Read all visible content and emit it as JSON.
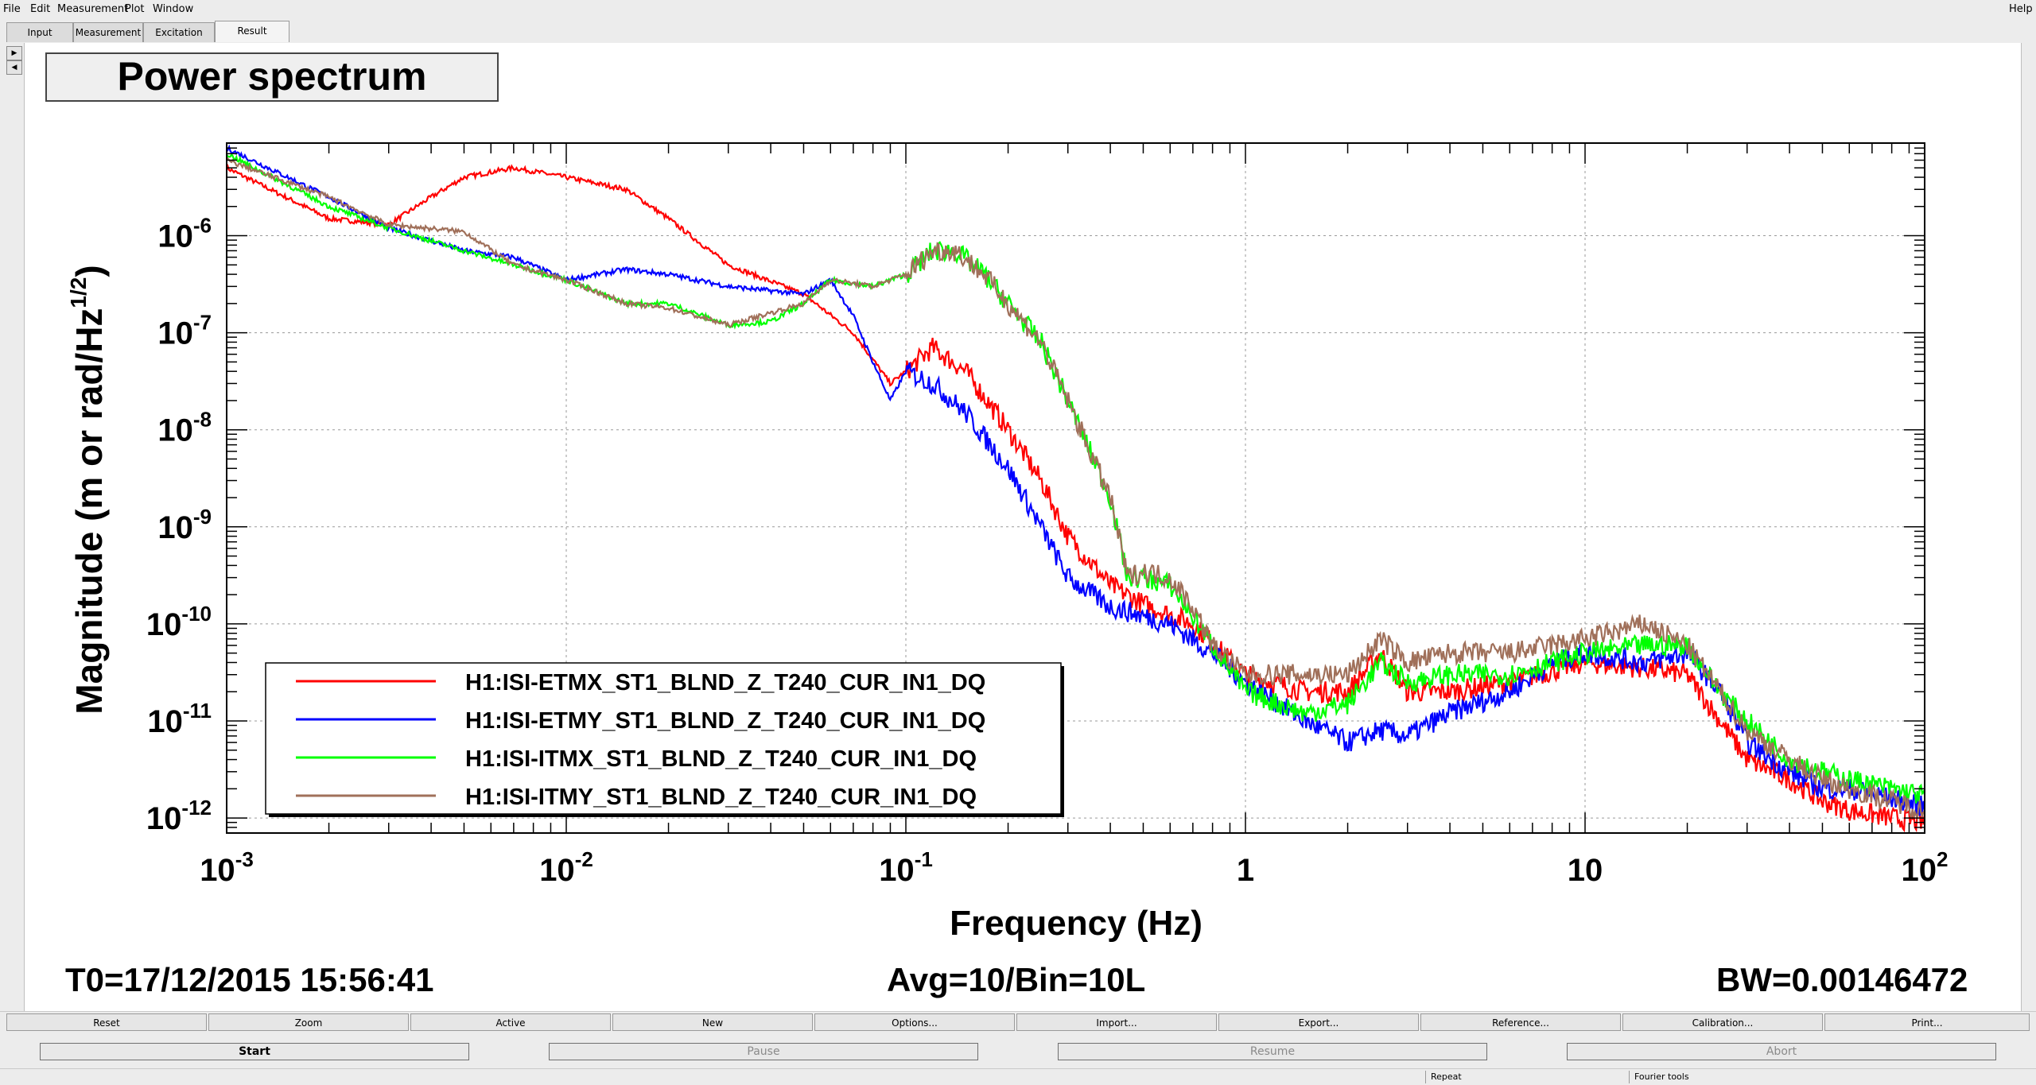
{
  "menu": {
    "file": "File",
    "edit": "Edit",
    "measurement": "Measurement",
    "plot": "Plot",
    "window": "Window",
    "help": "Help"
  },
  "tabs": [
    "Input",
    "Measurement",
    "Excitation",
    "Result"
  ],
  "plot": {
    "title": "Power spectrum",
    "footer_left": "T0=17/12/2015 15:56:41",
    "footer_center": "Avg=10/Bin=10L",
    "footer_right": "BW=0.00146472"
  },
  "chart_data": {
    "type": "line",
    "title": "Power spectrum",
    "xlabel": "Frequency (Hz)",
    "ylabel": "Magnitude (m or rad/Hz",
    "ylabel_sup": "1/2",
    "ylabel_close": ")",
    "xscale": "log",
    "yscale": "log",
    "xlim": [
      0.001,
      100
    ],
    "ylim": [
      7e-13,
      9e-06
    ],
    "grid": true,
    "legend_position": "bottom-left",
    "x_ticks": [
      {
        "value": 0.001,
        "base": "10",
        "exp": "-3"
      },
      {
        "value": 0.01,
        "base": "10",
        "exp": "-2"
      },
      {
        "value": 0.1,
        "base": "10",
        "exp": "-1"
      },
      {
        "value": 1,
        "base": "1",
        "exp": ""
      },
      {
        "value": 10,
        "base": "10",
        "exp": ""
      },
      {
        "value": 100,
        "base": "10",
        "exp": "2"
      }
    ],
    "y_ticks": [
      {
        "value": 1e-12,
        "base": "10",
        "exp": "-12"
      },
      {
        "value": 1e-11,
        "base": "10",
        "exp": "-11"
      },
      {
        "value": 1e-10,
        "base": "10",
        "exp": "-10"
      },
      {
        "value": 1e-09,
        "base": "10",
        "exp": "-9"
      },
      {
        "value": 1e-08,
        "base": "10",
        "exp": "-8"
      },
      {
        "value": 1e-07,
        "base": "10",
        "exp": "-7"
      },
      {
        "value": 1e-06,
        "base": "10",
        "exp": "-6"
      }
    ],
    "series": [
      {
        "name": "H1:ISI-ETMX_ST1_BLND_Z_T240_CUR_IN1_DQ",
        "color": "#ff0000",
        "points": [
          [
            0.001,
            5e-06
          ],
          [
            0.002,
            1.5e-06
          ],
          [
            0.003,
            1.3e-06
          ],
          [
            0.004,
            2.5e-06
          ],
          [
            0.005,
            4e-06
          ],
          [
            0.007,
            5e-06
          ],
          [
            0.01,
            4e-06
          ],
          [
            0.015,
            3e-06
          ],
          [
            0.02,
            1.5e-06
          ],
          [
            0.03,
            5e-07
          ],
          [
            0.05,
            2.5e-07
          ],
          [
            0.07,
            1e-07
          ],
          [
            0.09,
            3e-08
          ],
          [
            0.1,
            4e-08
          ],
          [
            0.12,
            7e-08
          ],
          [
            0.15,
            4e-08
          ],
          [
            0.2,
            1e-08
          ],
          [
            0.25,
            3e-09
          ],
          [
            0.3,
            8e-10
          ],
          [
            0.4,
            2.5e-10
          ],
          [
            0.5,
            1.6e-10
          ],
          [
            0.7,
            1e-10
          ],
          [
            1,
            3e-11
          ],
          [
            1.5,
            2e-11
          ],
          [
            2,
            2e-11
          ],
          [
            2.5,
            5e-11
          ],
          [
            3,
            2e-11
          ],
          [
            4,
            2e-11
          ],
          [
            6,
            2.5e-11
          ],
          [
            10,
            4e-11
          ],
          [
            15,
            3.5e-11
          ],
          [
            20,
            3e-11
          ],
          [
            25,
            1e-11
          ],
          [
            30,
            4e-12
          ],
          [
            40,
            2.5e-12
          ],
          [
            50,
            1.5e-12
          ],
          [
            60,
            1.2e-12
          ],
          [
            80,
            1e-12
          ],
          [
            100,
            9e-13
          ]
        ]
      },
      {
        "name": "H1:ISI-ETMY_ST1_BLND_Z_T240_CUR_IN1_DQ",
        "color": "#0000ff",
        "points": [
          [
            0.001,
            8e-06
          ],
          [
            0.002,
            2.5e-06
          ],
          [
            0.003,
            1.2e-06
          ],
          [
            0.005,
            7e-07
          ],
          [
            0.007,
            6e-07
          ],
          [
            0.01,
            3.5e-07
          ],
          [
            0.015,
            4.5e-07
          ],
          [
            0.02,
            4e-07
          ],
          [
            0.03,
            3e-07
          ],
          [
            0.05,
            2.5e-07
          ],
          [
            0.06,
            3.5e-07
          ],
          [
            0.07,
            1.5e-07
          ],
          [
            0.08,
            5e-08
          ],
          [
            0.09,
            2e-08
          ],
          [
            0.1,
            4e-08
          ],
          [
            0.12,
            3e-08
          ],
          [
            0.15,
            1.5e-08
          ],
          [
            0.2,
            4e-09
          ],
          [
            0.25,
            1e-09
          ],
          [
            0.3,
            3e-10
          ],
          [
            0.4,
            1.5e-10
          ],
          [
            0.6,
            1e-10
          ],
          [
            0.8,
            5e-11
          ],
          [
            1,
            2.5e-11
          ],
          [
            1.5,
            1e-11
          ],
          [
            2,
            6e-12
          ],
          [
            2.5,
            8e-12
          ],
          [
            3,
            7e-12
          ],
          [
            4,
            1.2e-11
          ],
          [
            6,
            2e-11
          ],
          [
            8,
            4e-11
          ],
          [
            10,
            5e-11
          ],
          [
            15,
            4e-11
          ],
          [
            20,
            5e-11
          ],
          [
            25,
            2e-11
          ],
          [
            30,
            6e-12
          ],
          [
            40,
            3e-12
          ],
          [
            50,
            2e-12
          ],
          [
            60,
            2e-12
          ],
          [
            80,
            1.6e-12
          ],
          [
            100,
            1.3e-12
          ]
        ]
      },
      {
        "name": "H1:ISI-ITMX_ST1_BLND_Z_T240_CUR_IN1_DQ",
        "color": "#00ff00",
        "points": [
          [
            0.001,
            7e-06
          ],
          [
            0.002,
            2e-06
          ],
          [
            0.003,
            1.2e-06
          ],
          [
            0.005,
            7e-07
          ],
          [
            0.007,
            5e-07
          ],
          [
            0.01,
            3.5e-07
          ],
          [
            0.015,
            2e-07
          ],
          [
            0.02,
            2e-07
          ],
          [
            0.03,
            1.2e-07
          ],
          [
            0.04,
            1.3e-07
          ],
          [
            0.05,
            2e-07
          ],
          [
            0.06,
            3.5e-07
          ],
          [
            0.08,
            3e-07
          ],
          [
            0.1,
            4e-07
          ],
          [
            0.12,
            7e-07
          ],
          [
            0.14,
            7e-07
          ],
          [
            0.17,
            4e-07
          ],
          [
            0.2,
            2e-07
          ],
          [
            0.25,
            8e-08
          ],
          [
            0.3,
            2e-08
          ],
          [
            0.4,
            2e-09
          ],
          [
            0.45,
            3e-10
          ],
          [
            0.5,
            3e-10
          ],
          [
            0.6,
            2.5e-10
          ],
          [
            0.7,
            1.2e-10
          ],
          [
            0.8,
            6e-11
          ],
          [
            1,
            2e-11
          ],
          [
            1.5,
            1.2e-11
          ],
          [
            2,
            1.5e-11
          ],
          [
            2.5,
            4e-11
          ],
          [
            3,
            2.5e-11
          ],
          [
            4,
            3e-11
          ],
          [
            6,
            3e-11
          ],
          [
            10,
            5e-11
          ],
          [
            15,
            6e-11
          ],
          [
            20,
            6e-11
          ],
          [
            25,
            2e-11
          ],
          [
            30,
            1e-11
          ],
          [
            40,
            4e-12
          ],
          [
            50,
            3e-12
          ],
          [
            60,
            2.5e-12
          ],
          [
            80,
            2e-12
          ],
          [
            100,
            1.7e-12
          ]
        ]
      },
      {
        "name": "H1:ISI-ITMY_ST1_BLND_Z_T240_CUR_IN1_DQ",
        "color": "#a0705a",
        "points": [
          [
            0.001,
            6e-06
          ],
          [
            0.002,
            2.5e-06
          ],
          [
            0.003,
            1.3e-06
          ],
          [
            0.005,
            1.1e-06
          ],
          [
            0.007,
            5e-07
          ],
          [
            0.01,
            3.5e-07
          ],
          [
            0.015,
            2e-07
          ],
          [
            0.02,
            1.8e-07
          ],
          [
            0.03,
            1.2e-07
          ],
          [
            0.05,
            2e-07
          ],
          [
            0.06,
            3.5e-07
          ],
          [
            0.08,
            3e-07
          ],
          [
            0.1,
            4e-07
          ],
          [
            0.12,
            7e-07
          ],
          [
            0.14,
            7e-07
          ],
          [
            0.17,
            4e-07
          ],
          [
            0.2,
            2e-07
          ],
          [
            0.25,
            8e-08
          ],
          [
            0.3,
            2e-08
          ],
          [
            0.4,
            2e-09
          ],
          [
            0.45,
            3e-10
          ],
          [
            0.5,
            3.5e-10
          ],
          [
            0.6,
            3e-10
          ],
          [
            0.7,
            1.5e-10
          ],
          [
            0.8,
            6e-11
          ],
          [
            1,
            3e-11
          ],
          [
            1.5,
            3e-11
          ],
          [
            2,
            3e-11
          ],
          [
            2.5,
            7e-11
          ],
          [
            3,
            4e-11
          ],
          [
            4,
            5e-11
          ],
          [
            6,
            5e-11
          ],
          [
            10,
            7e-11
          ],
          [
            15,
            1e-10
          ],
          [
            20,
            6e-11
          ],
          [
            25,
            2e-11
          ],
          [
            30,
            8e-12
          ],
          [
            40,
            4e-12
          ],
          [
            50,
            2.5e-12
          ],
          [
            60,
            2e-12
          ],
          [
            80,
            1.5e-12
          ],
          [
            100,
            1.2e-12
          ]
        ]
      }
    ]
  },
  "bottom_toolbar": [
    "Reset",
    "Zoom",
    "Active",
    "New",
    "Options...",
    "Import...",
    "Export...",
    "Reference...",
    "Calibration...",
    "Print..."
  ],
  "control_buttons": {
    "start": "Start",
    "pause": "Pause",
    "resume": "Resume",
    "abort": "Abort"
  },
  "status": {
    "repeat": "Repeat",
    "fourier": "Fourier tools"
  }
}
